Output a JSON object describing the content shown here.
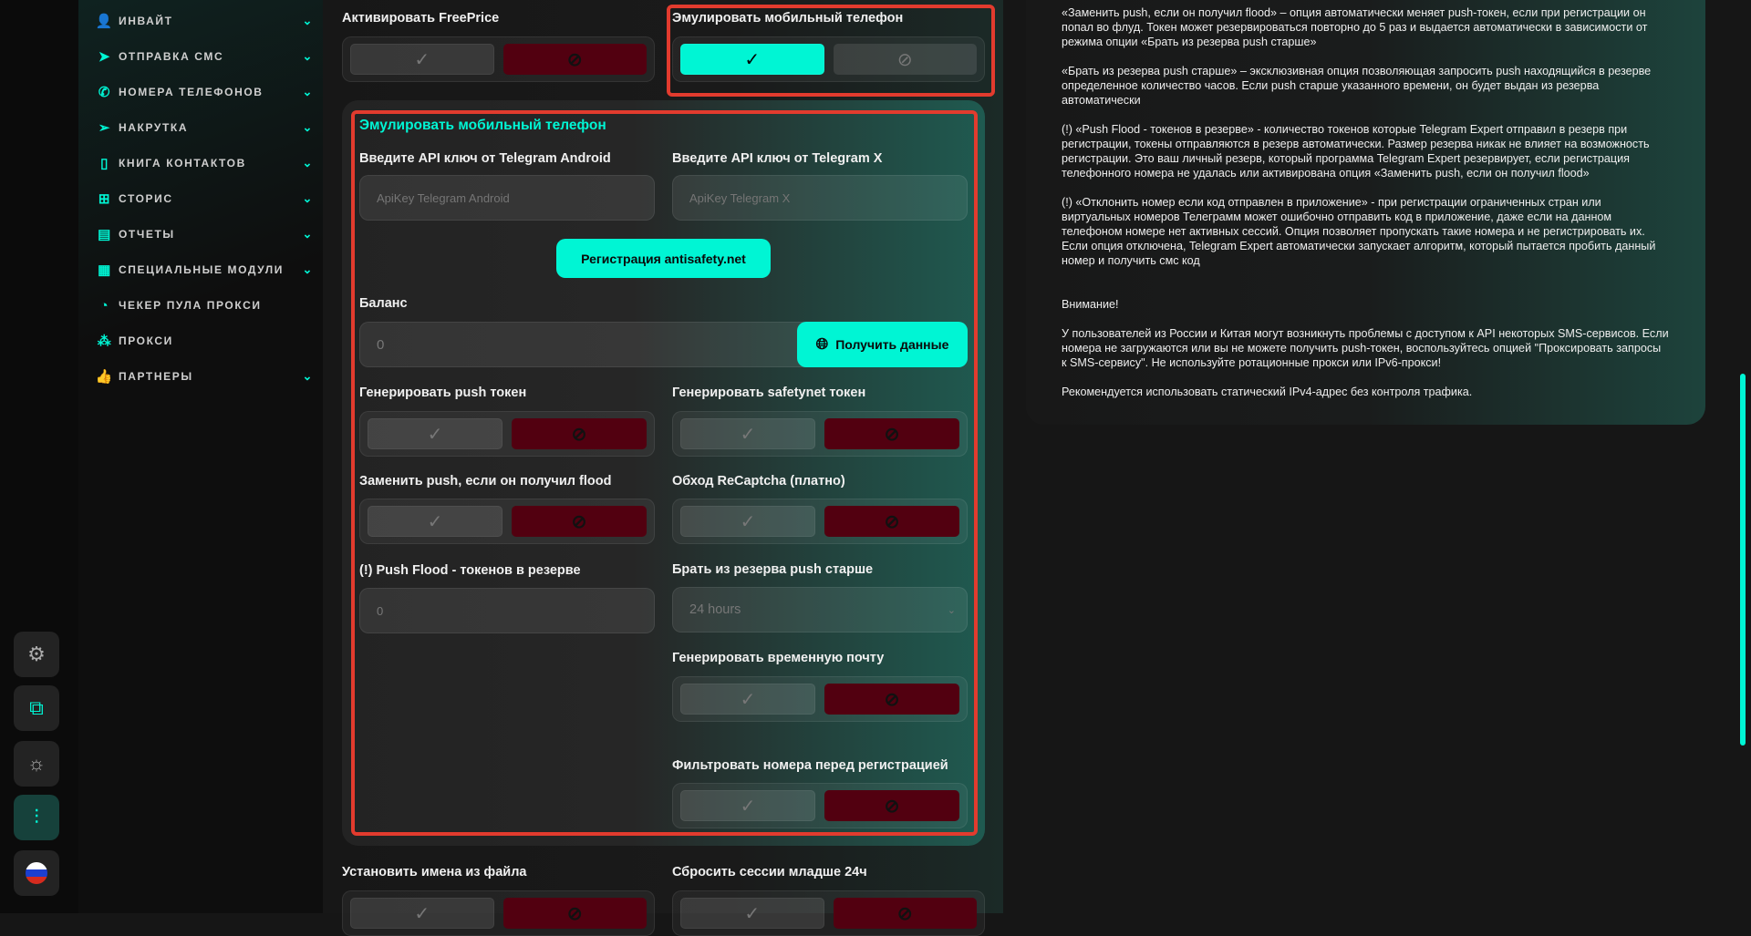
{
  "colors": {
    "accent": "#00f5d4",
    "danger": "#520010",
    "highlight": "#e23b2e"
  },
  "strip": [
    {
      "icon": "gear-icon",
      "glyph": "⚙"
    },
    {
      "icon": "external-link-icon",
      "glyph": "⧉"
    },
    {
      "icon": "sun-icon",
      "glyph": "☼"
    },
    {
      "icon": "sliders-icon",
      "glyph": "⫶"
    },
    {
      "icon": "russia-flag-icon",
      "glyph": ""
    }
  ],
  "nav": [
    {
      "label": "ИНВАЙТ",
      "icon": "user-list-icon",
      "glyph": "👤",
      "chevron": true
    },
    {
      "label": "ОТПРАВКА СМС",
      "icon": "send-icon",
      "glyph": "➤",
      "chevron": true
    },
    {
      "label": "НОМЕРА ТЕЛЕФОНОВ",
      "icon": "phone-icon",
      "glyph": "✆",
      "chevron": true
    },
    {
      "label": "НАКРУТКА",
      "icon": "send-plus-icon",
      "glyph": "➢",
      "chevron": true
    },
    {
      "label": "КНИГА КОНТАКТОВ",
      "icon": "notebook-icon",
      "glyph": "▯",
      "chevron": true
    },
    {
      "label": "СТОРИС",
      "icon": "plus-square-icon",
      "glyph": "⊞",
      "chevron": true
    },
    {
      "label": "ОТЧЕТЫ",
      "icon": "report-icon",
      "glyph": "▤",
      "chevron": true
    },
    {
      "label": "СПЕЦИАЛЬНЫЕ МОДУЛИ",
      "icon": "modules-icon",
      "glyph": "▦",
      "chevron": true
    },
    {
      "label": "ЧЕКЕР ПУЛА ПРОКСИ",
      "icon": "gauge-icon",
      "glyph": "◔",
      "chevron": false
    },
    {
      "label": "ПРОКСИ",
      "icon": "network-icon",
      "glyph": "⁂",
      "chevron": false
    },
    {
      "label": "ПАРТНЕРЫ",
      "icon": "thumbs-up-icon",
      "glyph": "👍",
      "chevron": true
    }
  ],
  "main": {
    "freeprice_label": "Активировать FreePrice",
    "freeprice_on": false,
    "emulate_label": "Эмулировать мобильный телефон",
    "emulate_on": true,
    "panel": {
      "title": "Эмулировать мобильный телефон",
      "android_label": "Введите API ключ от Telegram Android",
      "android_placeholder": "ApiKey Telegram Android",
      "x_label": "Введите API ключ от Telegram X",
      "x_placeholder": "ApiKey Telegram X",
      "register_button": "Регистрация antisafety.net",
      "balance_label": "Баланс",
      "balance_value": "0",
      "get_data_button": "Получить данные",
      "push_label": "Генерировать push токен",
      "push_on": false,
      "safetynet_label": "Генерировать safetynet токен",
      "safetynet_on": false,
      "replace_push_label": "Заменить push, если он получил flood",
      "replace_push_on": false,
      "recaptcha_label": "Обход ReCaptcha (платно)",
      "recaptcha_on": false,
      "push_flood_label": "(!) Push Flood - токенов в резерве",
      "push_flood_value": "0",
      "reserve_label": "Брать из резерва push старше",
      "reserve_value": "24 hours",
      "temp_mail_label": "Генерировать временную почту",
      "temp_mail_on": false,
      "filter_label": "Фильтровать номера перед регистрацией",
      "filter_on": false
    },
    "names_label": "Установить имена из файла",
    "reset_label": "Сбросить сессии младше 24ч"
  },
  "info": [
    "«Заменить push, если он получил flood» – опция автоматически меняет push-токен, если при регистрации он попал во флуд. Токен может резервироваться повторно до 5 раз и выдается автоматически в зависимости от режима опции «Брать из резерва push старше»",
    "«Брать из резерва push старше» – эксклюзивная опция позволяющая запросить push находящийся в резерве определенное количество часов. Если push старше указанного времени, он будет выдан из резерва автоматически",
    "(!) «Push Flood - токенов в резерве» - количество токенов которые Telegram Expert отправил в резерв при регистрации, токены отправляются в резерв автоматически. Размер резерва никак не влияет на возможность регистрации. Это ваш личный резерв, который программа Telegram Expert резервирует, если регистрация телефонного номера не удалась или активирована опция «Заменить push, если он получил flood»",
    "(!) «Отклонить номер если код отправлен в приложение» - при регистрации ограниченных стран или виртуальных номеров Телеграмм может ошибочно отправить код в приложение, даже если на данном телефоном номере нет активных сессий. Опция позволяет пропускать такие номера и не регистрировать их. Если опция отключена, Telegram Expert автоматически запускает алгоритм, который пытается пробить данный номер и получить смс код",
    "Внимание!",
    "У пользователей из России и Китая могут возникнуть проблемы с доступом к API некоторых SMS-сервисов. Если номера не загружаются или вы не можете получить push-токен, воспользуйтесь опцией \"Проксировать запросы к SMS-сервису\". Не используйте ротационные прокси или IPv6-прокси!",
    "Рекомендуется использовать статический IPv4-адрес без контроля трафика."
  ]
}
